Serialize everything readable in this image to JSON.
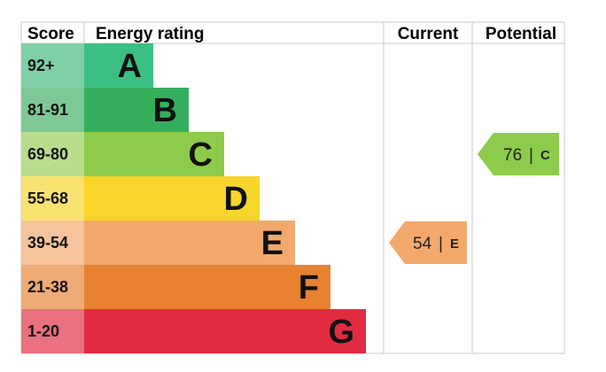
{
  "chart_data": {
    "type": "bar",
    "headers": {
      "score": "Score",
      "rating": "Energy rating",
      "current": "Current",
      "potential": "Potential"
    },
    "bands": [
      {
        "score": "92+",
        "letter": "A",
        "color": "#3cbf82",
        "score_bg": "#7fcfa7"
      },
      {
        "score": "81-91",
        "letter": "B",
        "color": "#35ae5c",
        "score_bg": "#7dc894"
      },
      {
        "score": "69-80",
        "letter": "C",
        "color": "#8dcb4b",
        "score_bg": "#b9dd8c"
      },
      {
        "score": "55-68",
        "letter": "D",
        "color": "#f7d52a",
        "score_bg": "#f9e271"
      },
      {
        "score": "39-54",
        "letter": "E",
        "color": "#f2a96b",
        "score_bg": "#f5c39c"
      },
      {
        "score": "21-38",
        "letter": "F",
        "color": "#e88230",
        "score_bg": "#efab75"
      },
      {
        "score": "1-20",
        "letter": "G",
        "color": "#e12b40",
        "score_bg": "#ea717f"
      }
    ],
    "current": {
      "value": 54,
      "letter": "E",
      "color": "#f2a96b"
    },
    "potential": {
      "value": 76,
      "letter": "C",
      "color": "#8dcb4b"
    },
    "separator": "|"
  }
}
